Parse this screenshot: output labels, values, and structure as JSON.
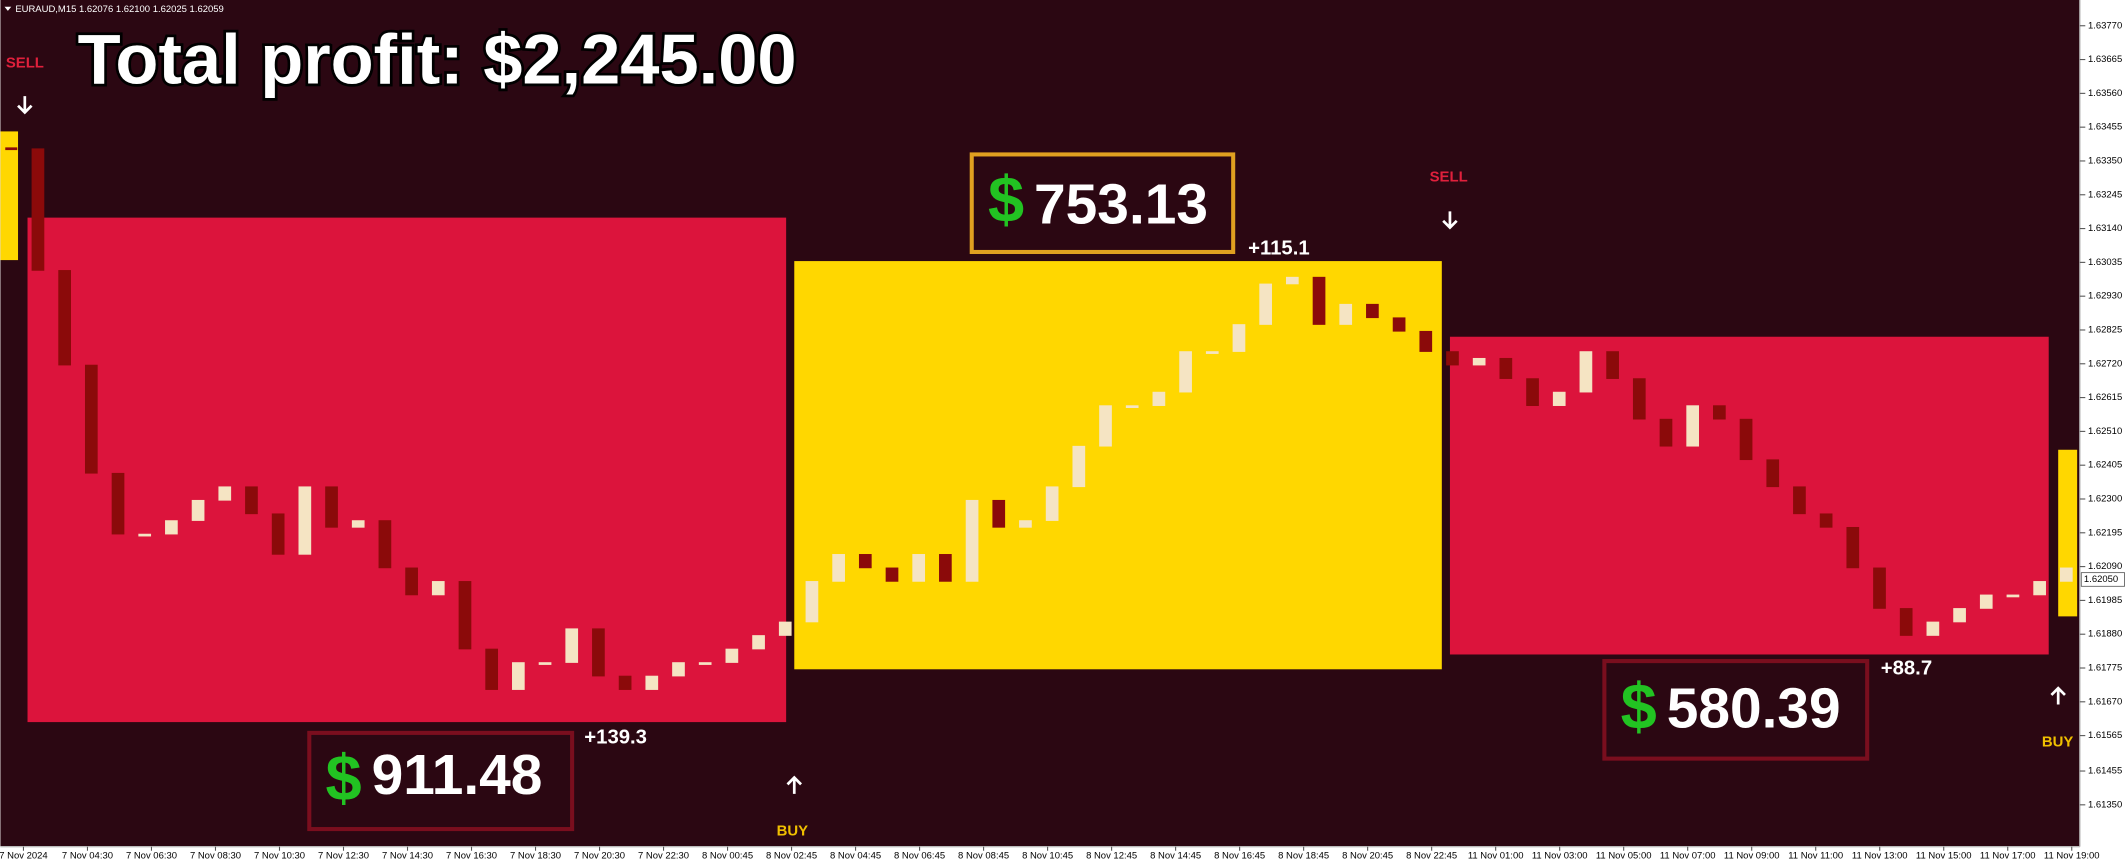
{
  "header": {
    "symbol": "EURAUD,M15 1.62076 1.62100 1.62025 1.62059"
  },
  "total_profit": "Total profit: $2,245.00",
  "trades": [
    {
      "currency": "$",
      "profit": "911.48",
      "pips": "+139.3",
      "signal": "SELL"
    },
    {
      "currency": "$",
      "profit": "753.13",
      "pips": "+115.1",
      "signal": "BUY"
    },
    {
      "currency": "$",
      "profit": "580.39",
      "pips": "+88.7",
      "signal": "SELL"
    }
  ],
  "final_signal": "BUY",
  "chart_data": {
    "type": "candlestick",
    "categories": [
      "7 Nov 2024",
      "7 Nov 04:30",
      "7 Nov 06:30",
      "7 Nov 08:30",
      "7 Nov 10:30",
      "7 Nov 12:30",
      "7 Nov 14:30",
      "7 Nov 16:30",
      "7 Nov 18:30",
      "7 Nov 20:30",
      "7 Nov 22:30",
      "8 Nov 00:45",
      "8 Nov 02:45",
      "8 Nov 04:45",
      "8 Nov 06:45",
      "8 Nov 08:45",
      "8 Nov 10:45",
      "8 Nov 12:45",
      "8 Nov 14:45",
      "8 Nov 16:45",
      "8 Nov 18:45",
      "8 Nov 20:45",
      "8 Nov 22:45",
      "11 Nov 01:00",
      "11 Nov 03:00",
      "11 Nov 05:00",
      "11 Nov 07:00",
      "11 Nov 09:00",
      "11 Nov 11:00",
      "11 Nov 13:00",
      "11 Nov 15:00",
      "11 Nov 17:00",
      "11 Nov 19:00"
    ],
    "closes": [
      1.63388,
      1.6301,
      1.62716,
      1.6238,
      1.62191,
      1.62191,
      1.62233,
      1.62296,
      1.62338,
      1.62254,
      1.62128,
      1.62338,
      1.62212,
      1.62233,
      1.62086,
      1.62002,
      1.62044,
      1.61834,
      1.61708,
      1.61792,
      1.61792,
      1.61897,
      1.6175,
      1.61708,
      1.6175,
      1.61792,
      1.61792,
      1.61834,
      1.61876,
      1.61918,
      1.62044,
      1.62128,
      1.62086,
      1.62044,
      1.62128,
      1.62044,
      1.62296,
      1.62212,
      1.62233,
      1.62338,
      1.62464,
      1.6259,
      1.6259,
      1.62632,
      1.62758,
      1.62758,
      1.62842,
      1.62968,
      1.62989,
      1.62842,
      1.62905,
      1.62863,
      1.62821,
      1.62758,
      1.62716,
      1.62737,
      1.62674,
      1.6259,
      1.62632,
      1.62758,
      1.62674,
      1.62548,
      1.62464,
      1.6259,
      1.62548,
      1.62422,
      1.62338,
      1.62254,
      1.62212,
      1.62086,
      1.6196,
      1.61876,
      1.61918,
      1.6196,
      1.62002,
      1.62002,
      1.62044,
      1.62086
    ],
    "up_color": "#f5e4c3",
    "down_color": "#8b0a0a",
    "zones": [
      {
        "top": 1.63174,
        "bottom": 1.61607,
        "color": "#dc143c"
      },
      {
        "top": 1.63039,
        "bottom": 1.61771,
        "color": "#ffd700"
      },
      {
        "top": 1.62804,
        "bottom": 1.61817,
        "color": "#dc143c"
      }
    ],
    "current_price": {
      "value": 1.6205,
      "label": "1.62050"
    },
    "ylim": [
      1.6122,
      1.6385
    ],
    "yticks": [
      {
        "value": 1.6377,
        "label": "1.63770"
      },
      1.63665,
      {
        "value": 1.6356,
        "label": "1.63560"
      },
      1.63455,
      {
        "value": 1.6335,
        "label": "1.63350"
      },
      1.63245,
      {
        "value": 1.6314,
        "label": "1.63140"
      },
      1.63035,
      {
        "value": 1.6293,
        "label": "1.62930"
      },
      1.62825,
      {
        "value": 1.6272,
        "label": "1.62720"
      },
      1.62615,
      {
        "value": 1.6251,
        "label": "1.62510"
      },
      1.62405,
      {
        "value": 1.623,
        "label": "1.62300"
      },
      1.62195,
      {
        "value": 1.6209,
        "label": "1.62090"
      },
      1.61985,
      {
        "value": 1.6188,
        "label": "1.61880"
      },
      1.61775,
      {
        "value": 1.6167,
        "label": "1.61670"
      },
      1.61565,
      1.61455,
      {
        "value": 1.6135,
        "label": "1.61350"
      }
    ]
  }
}
